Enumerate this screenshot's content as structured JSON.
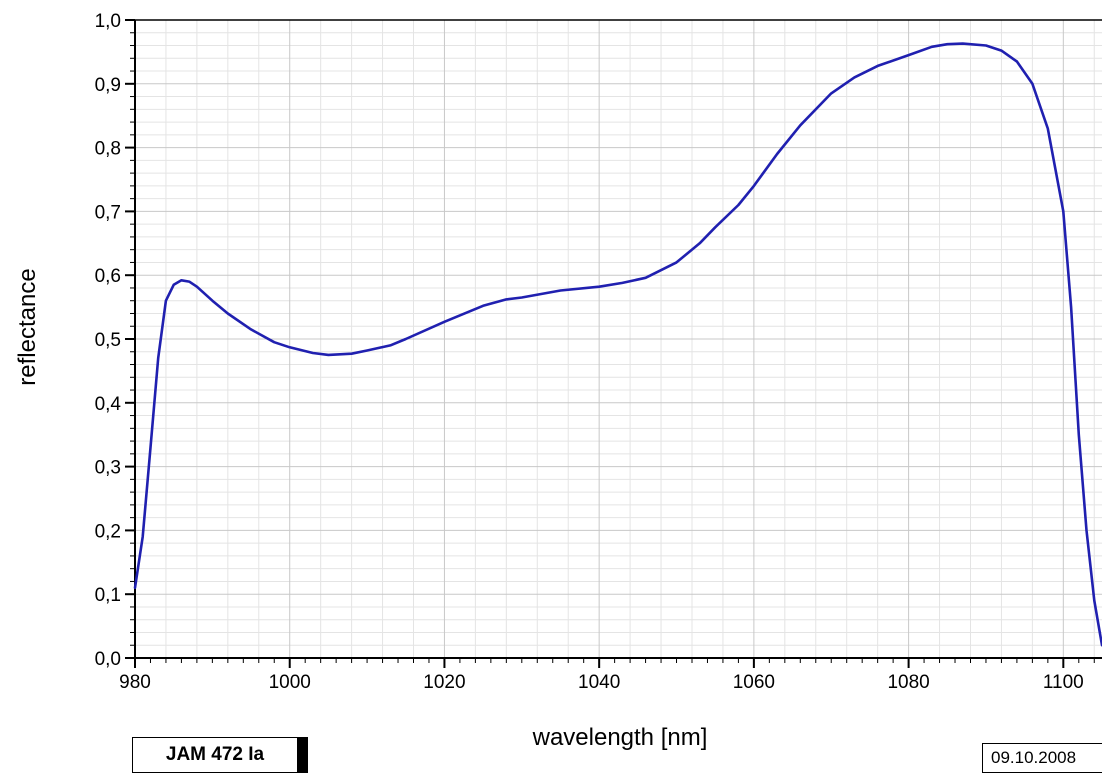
{
  "chart_data": {
    "type": "line",
    "title": "",
    "xlabel": "wavelength [nm]",
    "ylabel": "reflectance",
    "xlim": [
      980,
      1105
    ],
    "ylim": [
      0.0,
      1.0
    ],
    "x_ticks": [
      980,
      1000,
      1020,
      1040,
      1060,
      1080,
      1100
    ],
    "x_tick_labels": [
      "980",
      "1000",
      "1020",
      "1040",
      "1060",
      "1080",
      "1100"
    ],
    "y_ticks": [
      0.0,
      0.1,
      0.2,
      0.3,
      0.4,
      0.5,
      0.6,
      0.7,
      0.8,
      0.9,
      1.0
    ],
    "y_tick_labels": [
      "0,0",
      "0,1",
      "0,2",
      "0,3",
      "0,4",
      "0,5",
      "0,6",
      "0,7",
      "0,8",
      "0,9",
      "1,0"
    ],
    "grid": true,
    "series": [
      {
        "color": "#2020b0",
        "x": [
          980,
          981,
          982,
          983,
          984,
          985,
          986,
          987,
          988,
          990,
          992,
          995,
          998,
          1000,
          1003,
          1005,
          1008,
          1010,
          1013,
          1015,
          1020,
          1025,
          1028,
          1030,
          1035,
          1040,
          1043,
          1046,
          1050,
          1053,
          1055,
          1058,
          1060,
          1063,
          1066,
          1070,
          1073,
          1076,
          1080,
          1083,
          1085,
          1087,
          1090,
          1092,
          1094,
          1096,
          1098,
          1100,
          1101,
          1102,
          1103,
          1104,
          1105
        ],
        "y": [
          0.11,
          0.19,
          0.33,
          0.47,
          0.56,
          0.585,
          0.592,
          0.59,
          0.582,
          0.56,
          0.54,
          0.515,
          0.495,
          0.487,
          0.478,
          0.475,
          0.477,
          0.482,
          0.49,
          0.5,
          0.527,
          0.552,
          0.562,
          0.565,
          0.576,
          0.582,
          0.588,
          0.596,
          0.62,
          0.65,
          0.675,
          0.71,
          0.74,
          0.79,
          0.835,
          0.885,
          0.91,
          0.928,
          0.945,
          0.958,
          0.962,
          0.963,
          0.96,
          0.952,
          0.935,
          0.9,
          0.83,
          0.7,
          0.55,
          0.35,
          0.2,
          0.09,
          0.02
        ]
      }
    ]
  },
  "annotations": {
    "sample_label": "JAM 472 Ia",
    "date": "09.10.2008"
  }
}
